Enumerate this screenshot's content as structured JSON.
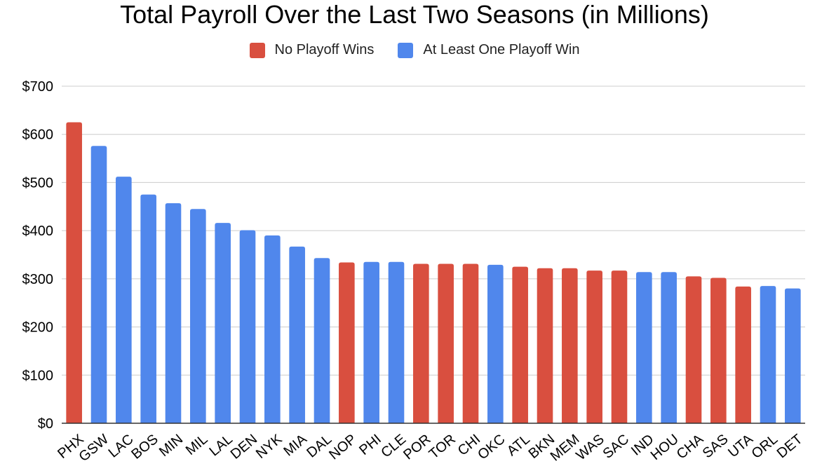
{
  "chart_data": {
    "type": "bar",
    "title": "Total Payroll Over the Last Two Seasons (in Millions)",
    "xlabel": "",
    "ylabel": "",
    "ylim": [
      0,
      700
    ],
    "y_ticks": [
      "$0",
      "$100",
      "$200",
      "$300",
      "$400",
      "$500",
      "$600",
      "$700"
    ],
    "y_tick_values": [
      0,
      100,
      200,
      300,
      400,
      500,
      600,
      700
    ],
    "grid": true,
    "legend_position": "top",
    "colors": {
      "no_playoff_wins": "#d94f3f",
      "playoff_win": "#5087ec",
      "grid": "#cccccc",
      "axis": "#333333"
    },
    "legend": [
      {
        "key": "no_playoff_wins",
        "label": "No Playoff Wins"
      },
      {
        "key": "playoff_win",
        "label": "At Least One Playoff Win"
      }
    ],
    "categories": [
      "PHX",
      "GSW",
      "LAC",
      "BOS",
      "MIN",
      "MIL",
      "LAL",
      "DEN",
      "NYK",
      "MIA",
      "DAL",
      "NOP",
      "PHI",
      "CLE",
      "POR",
      "TOR",
      "CHI",
      "OKC",
      "ATL",
      "BKN",
      "MEM",
      "WAS",
      "SAC",
      "IND",
      "HOU",
      "CHA",
      "SAS",
      "UTA",
      "ORL",
      "DET"
    ],
    "values": [
      625,
      576,
      512,
      475,
      457,
      445,
      416,
      401,
      390,
      367,
      343,
      334,
      335,
      335,
      331,
      331,
      331,
      329,
      325,
      322,
      322,
      317,
      317,
      314,
      314,
      305,
      302,
      284,
      285,
      280
    ],
    "groups": [
      "no_playoff_wins",
      "playoff_win",
      "playoff_win",
      "playoff_win",
      "playoff_win",
      "playoff_win",
      "playoff_win",
      "playoff_win",
      "playoff_win",
      "playoff_win",
      "playoff_win",
      "no_playoff_wins",
      "playoff_win",
      "playoff_win",
      "no_playoff_wins",
      "no_playoff_wins",
      "no_playoff_wins",
      "playoff_win",
      "no_playoff_wins",
      "no_playoff_wins",
      "no_playoff_wins",
      "no_playoff_wins",
      "no_playoff_wins",
      "playoff_win",
      "playoff_win",
      "no_playoff_wins",
      "no_playoff_wins",
      "no_playoff_wins",
      "playoff_win",
      "playoff_win"
    ]
  }
}
